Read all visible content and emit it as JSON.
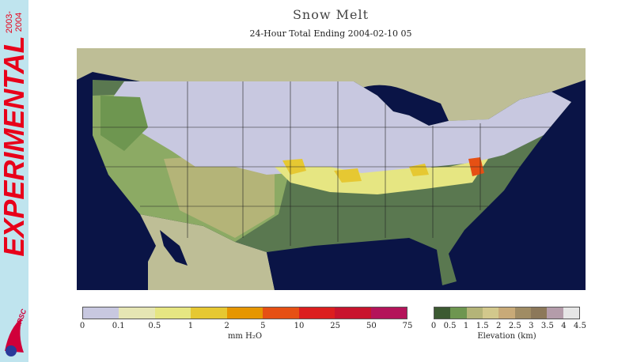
{
  "title": "Snow Melt",
  "subtitle": "24-Hour Total Ending 2004-02-10 05",
  "sidebar": {
    "label": "EXPERIMENTAL",
    "years_top": "2003-",
    "years_bottom": "2004",
    "logo_text": "NOHRSC"
  },
  "snowmelt_legend": {
    "unit": "mm H₂O",
    "ticks": [
      "0",
      "0.1",
      "0.5",
      "1",
      "2",
      "5",
      "10",
      "25",
      "50",
      "75"
    ],
    "colors": [
      "#c8c8e0",
      "#e6e6b4",
      "#e6e682",
      "#e6c832",
      "#e69600",
      "#e65014",
      "#dc1e1e",
      "#c8142d",
      "#b4145a"
    ]
  },
  "elevation_legend": {
    "unit": "Elevation (km)",
    "ticks": [
      "0",
      "0.5",
      "1",
      "1.5",
      "2",
      "2.5",
      "3",
      "3.5",
      "4",
      "4.5"
    ],
    "colors": [
      "#3c5a32",
      "#6e9650",
      "#b4b478",
      "#d2c88c",
      "#c8aa78",
      "#a08c64",
      "#8c785a",
      "#b49caa",
      "#e6e6e6"
    ]
  },
  "map_colors": {
    "ocean": "#0a1446",
    "land_outside": "#bebe96",
    "snow": "#c8c8e0",
    "lowland": "#5a7850",
    "midland": "#8caa64",
    "highland": "#b4b478"
  }
}
